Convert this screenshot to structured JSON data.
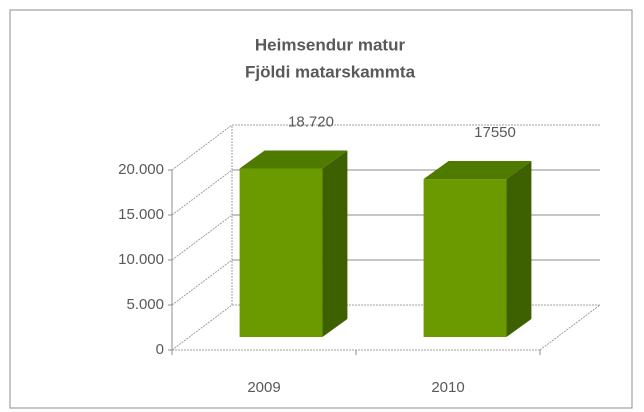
{
  "chart_data": {
    "type": "bar3d",
    "title": [
      "Heimsendur matur",
      "Fjöldi matarskammta"
    ],
    "categories": [
      "2009",
      "2010"
    ],
    "values": [
      18720,
      17550
    ],
    "value_labels": [
      "18.720",
      "17550"
    ],
    "color": "#6a9a00",
    "ylim": [
      0,
      20000
    ],
    "yticks": [
      0,
      {
        "value": 5000,
        "label": "5.000"
      },
      {
        "value": 10000,
        "label": "10.000"
      },
      {
        "value": 15000,
        "label": "15.000"
      },
      {
        "value": 20000,
        "label": "20.000"
      }
    ],
    "grid": true
  }
}
